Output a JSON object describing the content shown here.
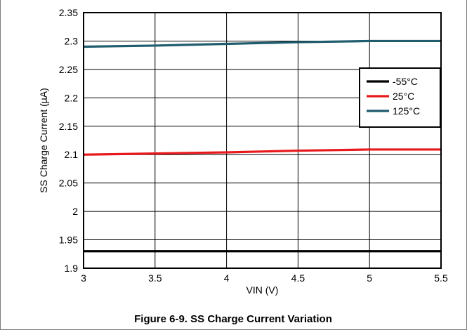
{
  "figure_caption": "Figure 6-9. SS Charge Current Variation",
  "chart_data": {
    "type": "line",
    "title": "",
    "xlabel": "VIN (V)",
    "ylabel": "SS Charge Current (µA)",
    "xlim": [
      3,
      5.5
    ],
    "ylim": [
      1.9,
      2.35
    ],
    "x_ticks": [
      "3",
      "3.5",
      "4",
      "4.5",
      "5",
      "5.5"
    ],
    "y_ticks": [
      "1.9",
      "1.95",
      "2",
      "2.05",
      "2.1",
      "2.15",
      "2.2",
      "2.25",
      "2.3",
      "2.35"
    ],
    "grid": true,
    "legend_position": "right",
    "series": [
      {
        "name": "-55°C",
        "color": "#000000",
        "x": [
          3,
          3.5,
          4,
          4.5,
          5,
          5.5
        ],
        "y": [
          1.93,
          1.93,
          1.93,
          1.93,
          1.93,
          1.93
        ]
      },
      {
        "name": "25°C",
        "color": "#e8191c",
        "x": [
          3,
          3.5,
          4,
          4.5,
          5,
          5.5
        ],
        "y": [
          2.1,
          2.102,
          2.104,
          2.107,
          2.109,
          2.109
        ]
      },
      {
        "name": "125°C",
        "color": "#1f5c6e",
        "x": [
          3,
          3.5,
          4,
          4.5,
          5,
          5.5
        ],
        "y": [
          2.29,
          2.292,
          2.295,
          2.298,
          2.3,
          2.3
        ]
      }
    ]
  }
}
